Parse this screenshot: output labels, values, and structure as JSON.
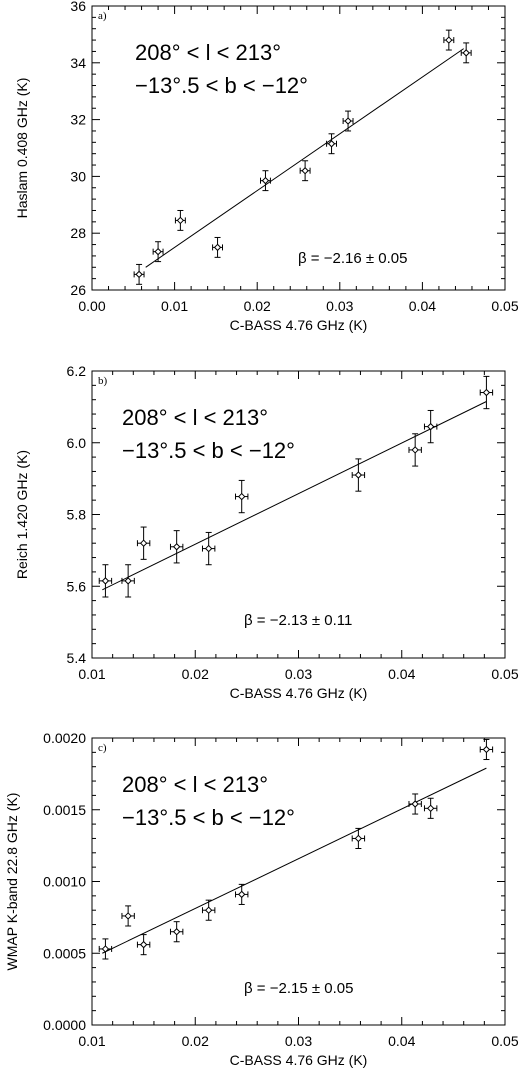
{
  "chart_data": [
    {
      "type": "scatter",
      "panel_tag": "a)",
      "xlabel": "C-BASS 4.76 GHz (K)",
      "ylabel": "Haslam 0.408 GHz (K)",
      "xlim": [
        0.0,
        0.05
      ],
      "ylim": [
        26,
        36
      ],
      "xticks": [
        "0.00",
        "0.01",
        "0.02",
        "0.03",
        "0.04",
        "0.05"
      ],
      "yticks": [
        "26",
        "28",
        "30",
        "32",
        "34",
        "36"
      ],
      "annotation_line1": "208° < l < 213°",
      "annotation_line2": "−13°.5 < b < −12°",
      "beta_text": "β = −2.16 ± 0.05",
      "points": [
        {
          "x": 0.0057,
          "y": 26.55,
          "xerr": 0.0006,
          "yerr": 0.35
        },
        {
          "x": 0.008,
          "y": 27.35,
          "xerr": 0.0006,
          "yerr": 0.35
        },
        {
          "x": 0.0107,
          "y": 28.45,
          "xerr": 0.0006,
          "yerr": 0.35
        },
        {
          "x": 0.0152,
          "y": 27.5,
          "xerr": 0.0006,
          "yerr": 0.35
        },
        {
          "x": 0.021,
          "y": 29.85,
          "xerr": 0.0006,
          "yerr": 0.35
        },
        {
          "x": 0.0258,
          "y": 30.2,
          "xerr": 0.0006,
          "yerr": 0.35
        },
        {
          "x": 0.029,
          "y": 31.15,
          "xerr": 0.0006,
          "yerr": 0.35
        },
        {
          "x": 0.031,
          "y": 31.95,
          "xerr": 0.0006,
          "yerr": 0.35
        },
        {
          "x": 0.0432,
          "y": 34.8,
          "xerr": 0.0006,
          "yerr": 0.35
        },
        {
          "x": 0.0453,
          "y": 34.35,
          "xerr": 0.0006,
          "yerr": 0.35
        }
      ],
      "fit_line": [
        [
          0.0065,
          26.8
        ],
        [
          0.045,
          34.5
        ]
      ]
    },
    {
      "type": "scatter",
      "panel_tag": "b)",
      "xlabel": "C-BASS 4.76 GHz (K)",
      "ylabel": "Reich 1.420 GHz (K)",
      "xlim": [
        0.01,
        0.05
      ],
      "ylim": [
        5.4,
        6.2
      ],
      "xticks": [
        "0.01",
        "0.02",
        "0.03",
        "0.04",
        "0.05"
      ],
      "yticks": [
        "5.4",
        "5.6",
        "5.8",
        "6.0",
        "6.2"
      ],
      "annotation_line1": "208° < l < 213°",
      "annotation_line2": "−13°.5 < b < −12°",
      "beta_text": "β = −2.13 ± 0.11",
      "points": [
        {
          "x": 0.0113,
          "y": 5.615,
          "xerr": 0.0006,
          "yerr": 0.045
        },
        {
          "x": 0.0135,
          "y": 5.615,
          "xerr": 0.0006,
          "yerr": 0.045
        },
        {
          "x": 0.015,
          "y": 5.72,
          "xerr": 0.0006,
          "yerr": 0.045
        },
        {
          "x": 0.0182,
          "y": 5.71,
          "xerr": 0.0006,
          "yerr": 0.045
        },
        {
          "x": 0.0213,
          "y": 5.705,
          "xerr": 0.0006,
          "yerr": 0.045
        },
        {
          "x": 0.0245,
          "y": 5.85,
          "xerr": 0.0006,
          "yerr": 0.045
        },
        {
          "x": 0.0358,
          "y": 5.91,
          "xerr": 0.0006,
          "yerr": 0.045
        },
        {
          "x": 0.0413,
          "y": 5.98,
          "xerr": 0.0006,
          "yerr": 0.045
        },
        {
          "x": 0.0428,
          "y": 6.045,
          "xerr": 0.0006,
          "yerr": 0.045
        },
        {
          "x": 0.0482,
          "y": 6.14,
          "xerr": 0.0006,
          "yerr": 0.045
        }
      ],
      "fit_line": [
        [
          0.011,
          5.59
        ],
        [
          0.0482,
          6.115
        ]
      ]
    },
    {
      "type": "scatter",
      "panel_tag": "c)",
      "xlabel": "C-BASS 4.76 GHz (K)",
      "ylabel": "WMAP K-band 22.8 GHz (K)",
      "xlim": [
        0.01,
        0.05
      ],
      "ylim": [
        0.0,
        0.002
      ],
      "xticks": [
        "0.01",
        "0.02",
        "0.03",
        "0.04",
        "0.05"
      ],
      "yticks": [
        "0.0000",
        "0.0005",
        "0.0010",
        "0.0015",
        "0.0020"
      ],
      "annotation_line1": "208° < l < 213°",
      "annotation_line2": "−13°.5 < b < −12°",
      "beta_text": "β = −2.15 ± 0.05",
      "points": [
        {
          "x": 0.0113,
          "y": 0.00053,
          "xerr": 0.0006,
          "yerr": 7e-05
        },
        {
          "x": 0.0135,
          "y": 0.00076,
          "xerr": 0.0006,
          "yerr": 7e-05
        },
        {
          "x": 0.015,
          "y": 0.00056,
          "xerr": 0.0006,
          "yerr": 7e-05
        },
        {
          "x": 0.0182,
          "y": 0.00065,
          "xerr": 0.0006,
          "yerr": 7e-05
        },
        {
          "x": 0.0213,
          "y": 0.0008,
          "xerr": 0.0006,
          "yerr": 7e-05
        },
        {
          "x": 0.0245,
          "y": 0.00091,
          "xerr": 0.0006,
          "yerr": 7e-05
        },
        {
          "x": 0.0358,
          "y": 0.0013,
          "xerr": 0.0006,
          "yerr": 7e-05
        },
        {
          "x": 0.0413,
          "y": 0.00154,
          "xerr": 0.0006,
          "yerr": 7e-05
        },
        {
          "x": 0.0428,
          "y": 0.00151,
          "xerr": 0.0006,
          "yerr": 7e-05
        },
        {
          "x": 0.0482,
          "y": 0.00192,
          "xerr": 0.0006,
          "yerr": 7e-05
        }
      ],
      "fit_line": [
        [
          0.011,
          0.0005
        ],
        [
          0.0482,
          0.00179
        ]
      ]
    }
  ]
}
